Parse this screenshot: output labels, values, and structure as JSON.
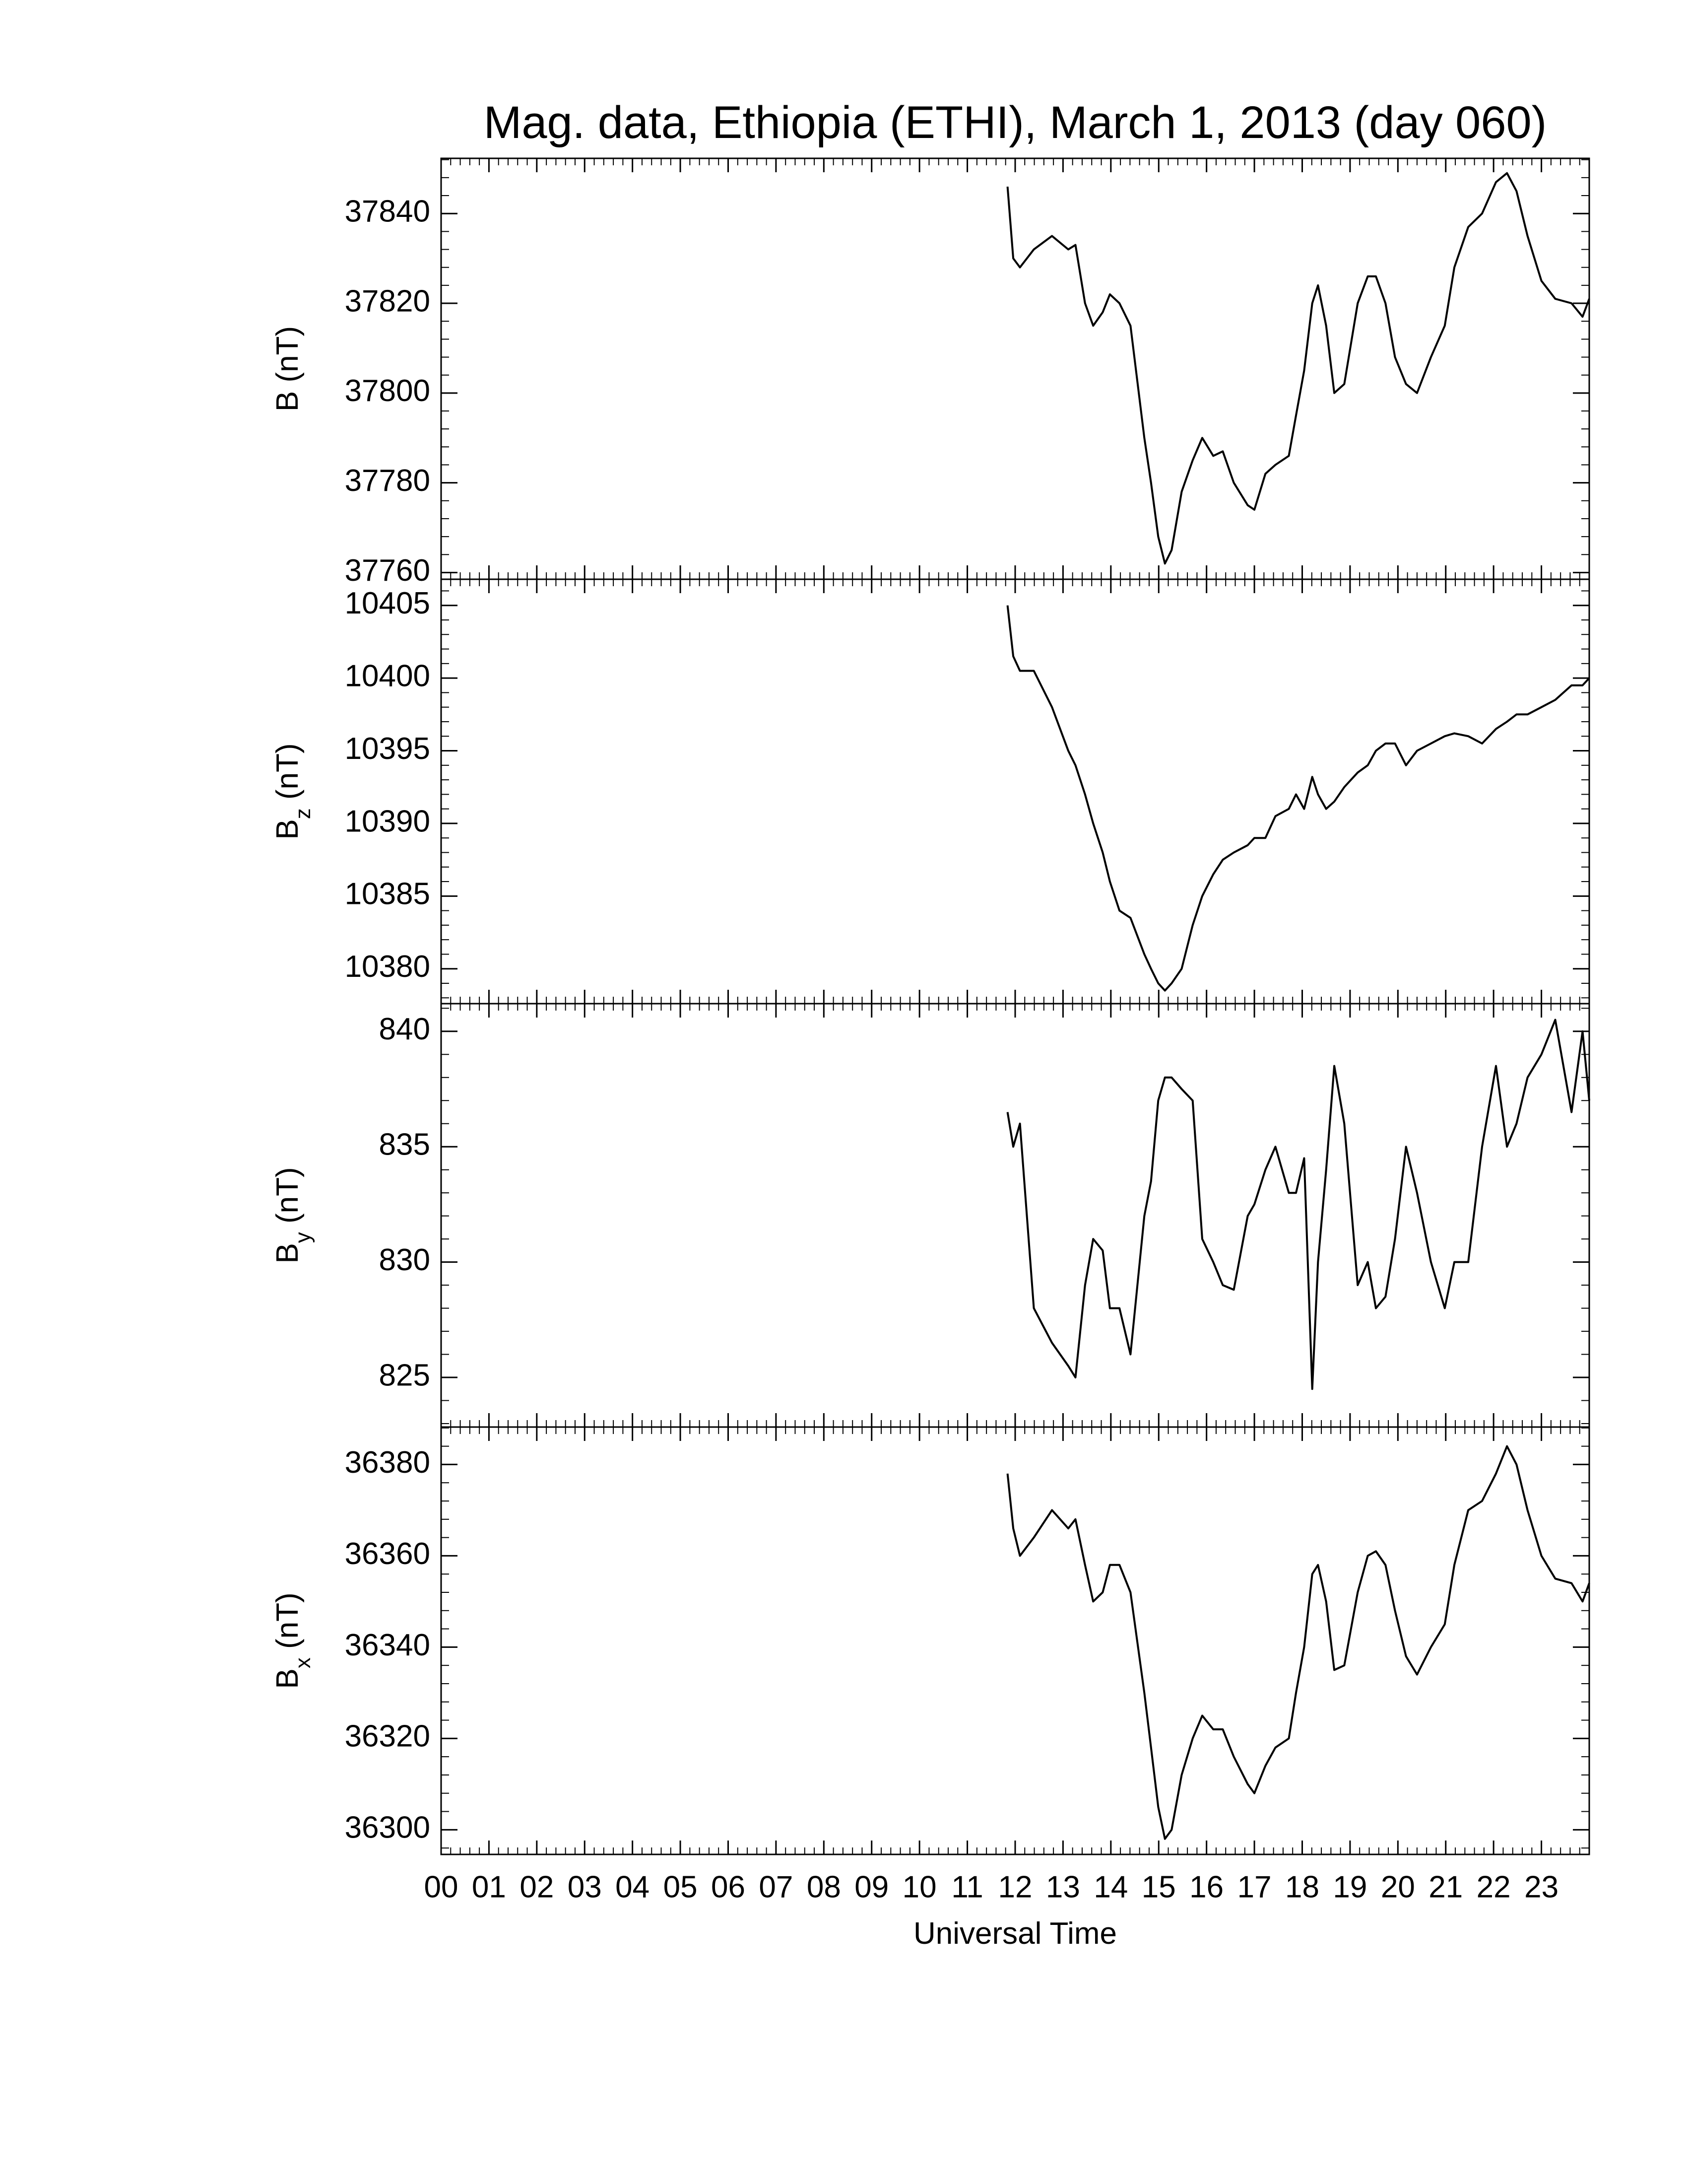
{
  "chart_data": [
    {
      "type": "line",
      "title": "Mag. data, Ethiopia (ETHI), March 1, 2013 (day 060)",
      "ylabel": [
        "B",
        "",
        " (nT)"
      ],
      "xlim": [
        0,
        24
      ],
      "ylim": [
        37758.5,
        37852.3
      ],
      "yticks": [
        37760,
        37780,
        37800,
        37820,
        37840
      ],
      "x": [
        11.84,
        11.96,
        12.1,
        12.39,
        12.77,
        13.11,
        13.26,
        13.46,
        13.63,
        13.83,
        13.98,
        14.18,
        14.41,
        14.7,
        14.84,
        14.99,
        15.13,
        15.27,
        15.48,
        15.71,
        15.91,
        16.14,
        16.34,
        16.57,
        16.86,
        17.0,
        17.23,
        17.44,
        17.72,
        17.87,
        18.04,
        18.21,
        18.33,
        18.5,
        18.67,
        18.88,
        19.16,
        19.37,
        19.54,
        19.74,
        19.94,
        20.17,
        20.4,
        20.69,
        20.98,
        21.18,
        21.47,
        21.76,
        22.05,
        22.28,
        22.48,
        22.71,
        23.0,
        23.29,
        23.63,
        23.86,
        24.0
      ],
      "series": [
        {
          "color": "#000000",
          "values": [
            37846,
            37830,
            37828,
            37832,
            37835,
            37832,
            37833,
            37820,
            37815,
            37818,
            37822,
            37820,
            37815,
            37790,
            37780,
            37768,
            37762,
            37765,
            37778,
            37785,
            37790,
            37786,
            37787,
            37780,
            37775,
            37774,
            37782,
            37784,
            37786,
            37795,
            37805,
            37820,
            37824,
            37815,
            37800,
            37802,
            37820,
            37826,
            37826,
            37820,
            37808,
            37802,
            37800,
            37808,
            37815,
            37828,
            37837,
            37840,
            37847,
            37849,
            37845,
            37835,
            37825,
            37821,
            37820,
            37817,
            37821
          ]
        }
      ]
    },
    {
      "type": "line",
      "ylabel": [
        "B",
        "z",
        " (nT)"
      ],
      "xlim": [
        0,
        24
      ],
      "ylim": [
        10377.6,
        10406.8
      ],
      "yticks": [
        10380,
        10385,
        10390,
        10395,
        10400,
        10405
      ],
      "x": [
        11.84,
        11.96,
        12.1,
        12.39,
        12.77,
        13.11,
        13.26,
        13.46,
        13.63,
        13.83,
        13.98,
        14.18,
        14.41,
        14.7,
        14.84,
        14.99,
        15.13,
        15.27,
        15.48,
        15.71,
        15.91,
        16.14,
        16.34,
        16.57,
        16.86,
        17.0,
        17.23,
        17.44,
        17.72,
        17.87,
        18.04,
        18.21,
        18.33,
        18.5,
        18.67,
        18.88,
        19.16,
        19.37,
        19.54,
        19.74,
        19.94,
        20.17,
        20.4,
        20.69,
        20.98,
        21.18,
        21.47,
        21.76,
        22.05,
        22.28,
        22.48,
        22.71,
        23.0,
        23.29,
        23.63,
        23.86,
        24.0
      ],
      "series": [
        {
          "color": "#000000",
          "values": [
            10405,
            10401.5,
            10400.5,
            10400.5,
            10398,
            10395,
            10394,
            10392,
            10390,
            10388,
            10386,
            10384,
            10383.5,
            10381,
            10380,
            10379,
            10378.5,
            10379,
            10380,
            10383,
            10385,
            10386.5,
            10387.5,
            10388,
            10388.5,
            10389,
            10389,
            10390.5,
            10391,
            10392,
            10391,
            10393.2,
            10392,
            10391,
            10391.5,
            10392.5,
            10393.5,
            10394,
            10395,
            10395.5,
            10395.5,
            10394,
            10395,
            10395.5,
            10396,
            10396.2,
            10396,
            10395.5,
            10396.5,
            10397,
            10397.5,
            10397.5,
            10398,
            10398.5,
            10399.5,
            10399.5,
            10400
          ]
        }
      ]
    },
    {
      "type": "line",
      "ylabel": [
        "B",
        "y",
        " (nT)"
      ],
      "xlim": [
        0,
        24
      ],
      "ylim": [
        822.85,
        841.2
      ],
      "yticks": [
        825,
        830,
        835,
        840
      ],
      "x": [
        11.84,
        11.96,
        12.1,
        12.39,
        12.77,
        13.11,
        13.26,
        13.46,
        13.63,
        13.83,
        13.98,
        14.18,
        14.41,
        14.7,
        14.84,
        14.99,
        15.13,
        15.27,
        15.48,
        15.71,
        15.91,
        16.14,
        16.34,
        16.57,
        16.86,
        17.0,
        17.23,
        17.44,
        17.72,
        17.87,
        18.04,
        18.21,
        18.33,
        18.5,
        18.67,
        18.88,
        19.16,
        19.37,
        19.54,
        19.74,
        19.94,
        20.17,
        20.4,
        20.69,
        20.98,
        21.18,
        21.47,
        21.76,
        22.05,
        22.28,
        22.48,
        22.71,
        23.0,
        23.29,
        23.63,
        23.86,
        24.0
      ],
      "series": [
        {
          "color": "#000000",
          "values": [
            836.5,
            835,
            836,
            828,
            826.5,
            825.5,
            825,
            829,
            831,
            830.5,
            828,
            828,
            826,
            832,
            833.5,
            837,
            838,
            838,
            837.5,
            837,
            831,
            830,
            829,
            828.8,
            832,
            832.5,
            834,
            835,
            833,
            833,
            834.5,
            824.5,
            830,
            834,
            838.5,
            836,
            829,
            830,
            828,
            828.5,
            831,
            835,
            833,
            830,
            828,
            830,
            830,
            835,
            838.5,
            835,
            836,
            838,
            839,
            840.5,
            836.5,
            840,
            837
          ]
        }
      ]
    },
    {
      "type": "line",
      "ylabel": [
        "B",
        "x",
        " (nT)"
      ],
      "xlabel": "Universal Time",
      "xlim": [
        0,
        24
      ],
      "ylim": [
        36294.6,
        36388.2
      ],
      "yticks": [
        36300,
        36320,
        36340,
        36360,
        36380
      ],
      "xticks": [
        {
          "value": 0,
          "label": "00"
        },
        {
          "value": 1,
          "label": "01"
        },
        {
          "value": 2,
          "label": "02"
        },
        {
          "value": 3,
          "label": "03"
        },
        {
          "value": 4,
          "label": "04"
        },
        {
          "value": 5,
          "label": "05"
        },
        {
          "value": 6,
          "label": "06"
        },
        {
          "value": 7,
          "label": "07"
        },
        {
          "value": 8,
          "label": "08"
        },
        {
          "value": 9,
          "label": "09"
        },
        10,
        11,
        12,
        13,
        14,
        15,
        16,
        17,
        18,
        19,
        20,
        21,
        22,
        23
      ],
      "x": [
        11.84,
        11.96,
        12.1,
        12.39,
        12.77,
        13.11,
        13.26,
        13.46,
        13.63,
        13.83,
        13.98,
        14.18,
        14.41,
        14.7,
        14.84,
        14.99,
        15.13,
        15.27,
        15.48,
        15.71,
        15.91,
        16.14,
        16.34,
        16.57,
        16.86,
        17.0,
        17.23,
        17.44,
        17.72,
        17.87,
        18.04,
        18.21,
        18.33,
        18.5,
        18.67,
        18.88,
        19.16,
        19.37,
        19.54,
        19.74,
        19.94,
        20.17,
        20.4,
        20.69,
        20.98,
        21.18,
        21.47,
        21.76,
        22.05,
        22.28,
        22.48,
        22.71,
        23.0,
        23.29,
        23.63,
        23.86,
        24.0
      ],
      "series": [
        {
          "color": "#000000",
          "values": [
            36378,
            36366,
            36360,
            36364,
            36370,
            36366,
            36368,
            36358,
            36350,
            36352,
            36358,
            36358,
            36352,
            36330,
            36318,
            36305,
            36298,
            36300,
            36312,
            36320,
            36325,
            36322,
            36322,
            36316,
            36310,
            36308,
            36314,
            36318,
            36320,
            36330,
            36340,
            36356,
            36358,
            36350,
            36335,
            36336,
            36352,
            36360,
            36361,
            36358,
            36348,
            36338,
            36334,
            36340,
            36345,
            36358,
            36370,
            36372,
            36378,
            36384,
            36380,
            36370,
            36360,
            36355,
            36354,
            36350,
            36354
          ]
        }
      ]
    }
  ]
}
